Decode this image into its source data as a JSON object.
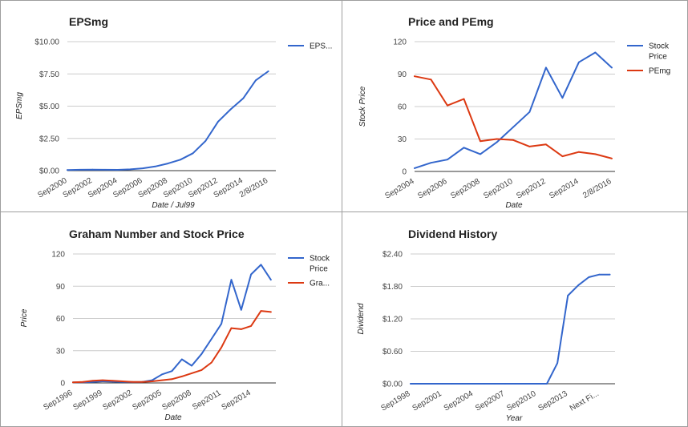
{
  "colors": {
    "blue": "#3366cc",
    "red": "#dc3912",
    "grid": "#cccccc",
    "baseline": "#333333"
  },
  "chart_data": [
    {
      "id": "eps",
      "type": "line",
      "title": "EPSmg",
      "xlabel": "Date / Jul99",
      "ylabel": "EPSmg",
      "ylim": [
        0,
        10
      ],
      "yticks": [
        "$0.00",
        "$2.50",
        "$5.00",
        "$7.50",
        "$10.00"
      ],
      "yticks_values": [
        0,
        2.5,
        5,
        7.5,
        10
      ],
      "xticks": [
        "Sep2000",
        "Sep2002",
        "Sep2004",
        "Sep2006",
        "Sep2008",
        "Sep2010",
        "Sep2012",
        "Sep2014",
        "2/8/2016"
      ],
      "xticks_pos": [
        0,
        2,
        4,
        6,
        8,
        10,
        12,
        14,
        16
      ],
      "xlim": [
        0,
        16.6
      ],
      "legend": "right",
      "series": [
        {
          "name": "EPS...",
          "color": "#3366cc",
          "x": [
            0,
            1,
            2,
            3,
            4,
            5,
            6,
            7,
            8,
            9,
            10,
            11,
            12,
            13,
            14,
            15,
            16
          ],
          "values": [
            0.05,
            0.07,
            0.08,
            0.07,
            0.06,
            0.1,
            0.18,
            0.32,
            0.55,
            0.85,
            1.35,
            2.3,
            3.8,
            4.75,
            5.6,
            7.0,
            7.7
          ]
        }
      ]
    },
    {
      "id": "price-pe",
      "type": "line",
      "title": "Price and PEmg",
      "xlabel": "Date",
      "ylabel": "Stock Price",
      "ylim": [
        0,
        120
      ],
      "yticks": [
        "0",
        "30",
        "60",
        "90",
        "120"
      ],
      "yticks_values": [
        0,
        30,
        60,
        90,
        120
      ],
      "xticks": [
        "Sep2004",
        "Sep2006",
        "Sep2008",
        "Sep2010",
        "Sep2012",
        "Sep2014",
        "2/8/2016"
      ],
      "xticks_pos": [
        0,
        2,
        4,
        6,
        8,
        10,
        12
      ],
      "xlim": [
        0,
        12.2
      ],
      "legend": "right",
      "series": [
        {
          "name": "Stock Price",
          "name_lines": [
            "Stock",
            "Price"
          ],
          "color": "#3366cc",
          "x": [
            0,
            1,
            2,
            3,
            4,
            5,
            6,
            7,
            8,
            9,
            10,
            11,
            12
          ],
          "values": [
            3,
            8,
            11,
            22,
            16,
            27,
            41,
            55,
            96,
            68,
            101,
            110,
            96
          ]
        },
        {
          "name": "PEmg",
          "name_lines": [
            "PEmg"
          ],
          "color": "#dc3912",
          "x": [
            0,
            1,
            2,
            3,
            4,
            5,
            6,
            7,
            8,
            9,
            10,
            11,
            12
          ],
          "values": [
            88,
            85,
            61,
            67,
            28,
            30,
            29,
            23,
            25,
            14,
            18,
            16,
            12
          ]
        }
      ]
    },
    {
      "id": "graham",
      "type": "line",
      "title": "Graham Number and Stock Price",
      "xlabel": "Date",
      "ylabel": "Price",
      "ylim": [
        0,
        120
      ],
      "yticks": [
        "0",
        "30",
        "60",
        "90",
        "120"
      ],
      "yticks_values": [
        0,
        30,
        60,
        90,
        120
      ],
      "xticks": [
        "Sep1996",
        "Sep1999",
        "Sep2002",
        "Sep2005",
        "Sep2008",
        "Sep2011",
        "Sep2014"
      ],
      "xticks_pos": [
        0,
        3,
        6,
        9,
        12,
        15,
        18
      ],
      "xlim": [
        0,
        20.5
      ],
      "legend": "right",
      "series": [
        {
          "name": "Stock Price",
          "name_lines": [
            "Stock",
            "Price"
          ],
          "color": "#3366cc",
          "x": [
            0,
            1,
            2,
            3,
            4,
            5,
            6,
            7,
            8,
            9,
            10,
            11,
            12,
            13,
            14,
            15,
            16,
            17,
            18,
            19,
            20
          ],
          "values": [
            0.5,
            0.7,
            1.0,
            1.5,
            1.2,
            1.0,
            0.8,
            1.0,
            2.5,
            8,
            11,
            22,
            16,
            27,
            41,
            55,
            96,
            68,
            101,
            110,
            96
          ]
        },
        {
          "name": "Gra...",
          "name_lines": [
            "Gra..."
          ],
          "color": "#dc3912",
          "x": [
            0,
            1,
            2,
            3,
            4,
            5,
            6,
            7,
            8,
            9,
            10,
            11,
            12,
            13,
            14,
            15,
            16,
            17,
            18,
            19,
            20
          ],
          "values": [
            0.5,
            1.0,
            2.0,
            2.5,
            2.0,
            1.5,
            1.0,
            1.0,
            1.5,
            2.5,
            3.5,
            6,
            9,
            12,
            19,
            33,
            51,
            50,
            53,
            67,
            66
          ]
        }
      ]
    },
    {
      "id": "dividend",
      "type": "line",
      "title": "Dividend History",
      "xlabel": "Year",
      "ylabel": "Dividend",
      "ylim": [
        0,
        2.4
      ],
      "yticks": [
        "$0.00",
        "$0.60",
        "$1.20",
        "$1.80",
        "$2.40"
      ],
      "yticks_values": [
        0,
        0.6,
        1.2,
        1.8,
        2.4
      ],
      "xticks": [
        "Sep1998",
        "Sep2001",
        "Sep2004",
        "Sep2007",
        "Sep2010",
        "Sep2013",
        "Next Fi..."
      ],
      "xticks_pos": [
        0,
        3,
        6,
        9,
        12,
        15,
        18
      ],
      "xlim": [
        0,
        19.5
      ],
      "legend": "none",
      "series": [
        {
          "name": "",
          "color": "#3366cc",
          "x": [
            0,
            1,
            2,
            3,
            4,
            5,
            6,
            7,
            8,
            9,
            10,
            11,
            12,
            13,
            14,
            15,
            16,
            17,
            18,
            19
          ],
          "values": [
            0,
            0,
            0,
            0,
            0,
            0,
            0,
            0,
            0,
            0,
            0,
            0,
            0,
            0,
            0.38,
            1.63,
            1.82,
            1.97,
            2.02,
            2.02
          ]
        }
      ]
    }
  ]
}
